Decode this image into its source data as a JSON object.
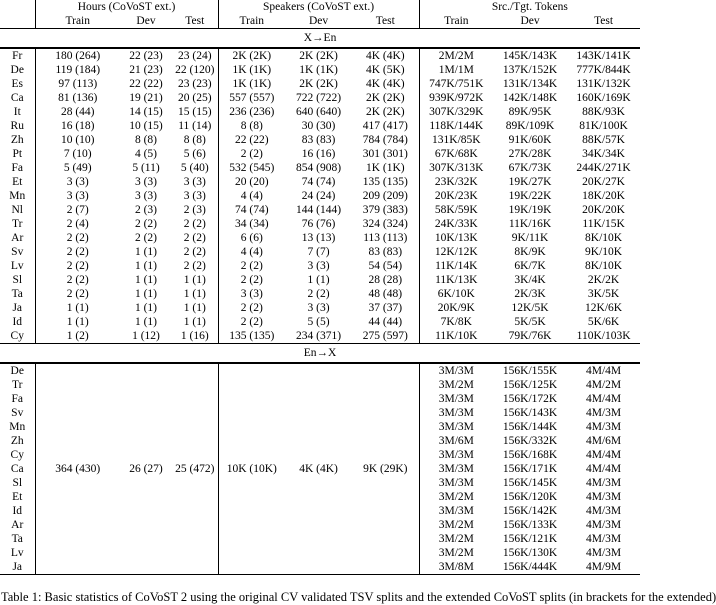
{
  "table": {
    "col_groups": [
      {
        "label": "Hours (CoVoST ext.)"
      },
      {
        "label": "Speakers (CoVoST ext.)"
      },
      {
        "label": "Src./Tgt. Tokens"
      }
    ],
    "sub_headers": [
      "Train",
      "Dev",
      "Test"
    ],
    "sections": [
      {
        "label": "X→En",
        "rows": [
          {
            "lang": "Fr",
            "cells": [
              "180 (264)",
              "22 (23)",
              "23 (24)",
              "2K (2K)",
              "2K (2K)",
              "4K (4K)",
              "2M/2M",
              "145K/143K",
              "143K/141K"
            ]
          },
          {
            "lang": "De",
            "cells": [
              "119 (184)",
              "21 (23)",
              "22 (120)",
              "1K (1K)",
              "1K (1K)",
              "4K (5K)",
              "1M/1M",
              "137K/152K",
              "777K/844K"
            ]
          },
          {
            "lang": "Es",
            "cells": [
              "97 (113)",
              "22 (22)",
              "23 (23)",
              "1K (1K)",
              "2K (2K)",
              "4K (4K)",
              "747K/751K",
              "131K/134K",
              "131K/132K"
            ]
          },
          {
            "lang": "Ca",
            "cells": [
              "81 (136)",
              "19 (21)",
              "20 (25)",
              "557 (557)",
              "722 (722)",
              "2K (2K)",
              "939K/972K",
              "142K/148K",
              "160K/169K"
            ]
          },
          {
            "lang": "It",
            "cells": [
              "28 (44)",
              "14 (15)",
              "15 (15)",
              "236 (236)",
              "640 (640)",
              "2K (2K)",
              "307K/329K",
              "89K/95K",
              "88K/93K"
            ]
          },
          {
            "lang": "Ru",
            "cells": [
              "16 (18)",
              "10 (15)",
              "11 (14)",
              "8 (8)",
              "30 (30)",
              "417 (417)",
              "118K/144K",
              "89K/109K",
              "81K/100K"
            ]
          },
          {
            "lang": "Zh",
            "cells": [
              "10 (10)",
              "8 (8)",
              "8 (8)",
              "22 (22)",
              "83 (83)",
              "784 (784)",
              "131K/85K",
              "91K/60K",
              "88K/57K"
            ]
          },
          {
            "lang": "Pt",
            "cells": [
              "7 (10)",
              "4 (5)",
              "5 (6)",
              "2 (2)",
              "16 (16)",
              "301 (301)",
              "67K/68K",
              "27K/28K",
              "34K/34K"
            ]
          },
          {
            "lang": "Fa",
            "cells": [
              "5 (49)",
              "5 (11)",
              "5 (40)",
              "532 (545)",
              "854 (908)",
              "1K (1K)",
              "307K/313K",
              "67K/73K",
              "244K/271K"
            ]
          },
          {
            "lang": "Et",
            "cells": [
              "3 (3)",
              "3 (3)",
              "3 (3)",
              "20 (20)",
              "74 (74)",
              "135 (135)",
              "23K/32K",
              "19K/27K",
              "20K/27K"
            ]
          },
          {
            "lang": "Mn",
            "cells": [
              "3 (3)",
              "3 (3)",
              "3 (3)",
              "4 (4)",
              "24 (24)",
              "209 (209)",
              "20K/23K",
              "19K/22K",
              "18K/20K"
            ]
          },
          {
            "lang": "Nl",
            "cells": [
              "2 (7)",
              "2 (3)",
              "2 (3)",
              "74 (74)",
              "144 (144)",
              "379 (383)",
              "58K/59K",
              "19K/19K",
              "20K/20K"
            ]
          },
          {
            "lang": "Tr",
            "cells": [
              "2 (4)",
              "2 (2)",
              "2 (2)",
              "34 (34)",
              "76 (76)",
              "324 (324)",
              "24K/33K",
              "11K/16K",
              "11K/15K"
            ]
          },
          {
            "lang": "Ar",
            "cells": [
              "2 (2)",
              "2 (2)",
              "2 (2)",
              "6 (6)",
              "13 (13)",
              "113 (113)",
              "10K/13K",
              "9K/11K",
              "8K/10K"
            ]
          },
          {
            "lang": "Sv",
            "cells": [
              "2 (2)",
              "1 (1)",
              "2 (2)",
              "4 (4)",
              "7 (7)",
              "83 (83)",
              "12K/12K",
              "8K/9K",
              "9K/10K"
            ]
          },
          {
            "lang": "Lv",
            "cells": [
              "2 (2)",
              "1 (1)",
              "2 (2)",
              "2 (2)",
              "3 (3)",
              "54 (54)",
              "11K/14K",
              "6K/7K",
              "8K/10K"
            ]
          },
          {
            "lang": "Sl",
            "cells": [
              "2 (2)",
              "1 (1)",
              "1 (1)",
              "2 (2)",
              "1 (1)",
              "28 (28)",
              "11K/13K",
              "3K/4K",
              "2K/2K"
            ]
          },
          {
            "lang": "Ta",
            "cells": [
              "2 (2)",
              "1 (1)",
              "1 (1)",
              "3 (3)",
              "2 (2)",
              "48 (48)",
              "6K/10K",
              "2K/3K",
              "3K/5K"
            ]
          },
          {
            "lang": "Ja",
            "cells": [
              "1 (1)",
              "1 (1)",
              "1 (1)",
              "2 (2)",
              "3 (3)",
              "37 (37)",
              "20K/9K",
              "12K/5K",
              "12K/6K"
            ]
          },
          {
            "lang": "Id",
            "cells": [
              "1 (1)",
              "1 (1)",
              "1 (1)",
              "2 (2)",
              "5 (5)",
              "44 (44)",
              "7K/8K",
              "5K/5K",
              "5K/6K"
            ]
          },
          {
            "lang": "Cy",
            "cells": [
              "1 (2)",
              "1 (12)",
              "1 (16)",
              "135 (135)",
              "234 (371)",
              "275 (597)",
              "11K/10K",
              "79K/76K",
              "110K/103K"
            ]
          }
        ]
      },
      {
        "label": "En→X",
        "rows": [
          {
            "lang": "De",
            "cells": [
              "",
              "",
              "",
              "",
              "",
              "",
              "3M/3M",
              "156K/155K",
              "4M/4M"
            ]
          },
          {
            "lang": "Tr",
            "cells": [
              "",
              "",
              "",
              "",
              "",
              "",
              "3M/2M",
              "156K/125K",
              "4M/2M"
            ]
          },
          {
            "lang": "Fa",
            "cells": [
              "",
              "",
              "",
              "",
              "",
              "",
              "3M/3M",
              "156K/172K",
              "4M/4M"
            ]
          },
          {
            "lang": "Sv",
            "cells": [
              "",
              "",
              "",
              "",
              "",
              "",
              "3M/3M",
              "156K/143K",
              "4M/3M"
            ]
          },
          {
            "lang": "Mn",
            "cells": [
              "",
              "",
              "",
              "",
              "",
              "",
              "3M/3M",
              "156K/144K",
              "4M/3M"
            ]
          },
          {
            "lang": "Zh",
            "cells": [
              "",
              "",
              "",
              "",
              "",
              "",
              "3M/6M",
              "156K/332K",
              "4M/6M"
            ]
          },
          {
            "lang": "Cy",
            "cells": [
              "",
              "",
              "",
              "",
              "",
              "",
              "3M/3M",
              "156K/168K",
              "4M/4M"
            ]
          },
          {
            "lang": "Ca",
            "cells": [
              "364 (430)",
              "26 (27)",
              "25 (472)",
              "10K (10K)",
              "4K (4K)",
              "9K (29K)",
              "3M/3M",
              "156K/171K",
              "4M/4M"
            ]
          },
          {
            "lang": "Sl",
            "cells": [
              "",
              "",
              "",
              "",
              "",
              "",
              "3M/3M",
              "156K/145K",
              "4M/3M"
            ]
          },
          {
            "lang": "Et",
            "cells": [
              "",
              "",
              "",
              "",
              "",
              "",
              "3M/2M",
              "156K/120K",
              "4M/3M"
            ]
          },
          {
            "lang": "Id",
            "cells": [
              "",
              "",
              "",
              "",
              "",
              "",
              "3M/3M",
              "156K/142K",
              "4M/3M"
            ]
          },
          {
            "lang": "Ar",
            "cells": [
              "",
              "",
              "",
              "",
              "",
              "",
              "3M/2M",
              "156K/133K",
              "4M/3M"
            ]
          },
          {
            "lang": "Ta",
            "cells": [
              "",
              "",
              "",
              "",
              "",
              "",
              "3M/2M",
              "156K/121K",
              "4M/3M"
            ]
          },
          {
            "lang": "Lv",
            "cells": [
              "",
              "",
              "",
              "",
              "",
              "",
              "3M/2M",
              "156K/130K",
              "4M/3M"
            ]
          },
          {
            "lang": "Ja",
            "cells": [
              "",
              "",
              "",
              "",
              "",
              "",
              "3M/8M",
              "156K/444K",
              "4M/9M"
            ]
          }
        ]
      }
    ]
  },
  "caption": {
    "text": "Table 1: Basic statistics of CoVoST 2 using the original CV validated TSV splits and the extended CoVoST splits (in brackets for the extended)"
  }
}
